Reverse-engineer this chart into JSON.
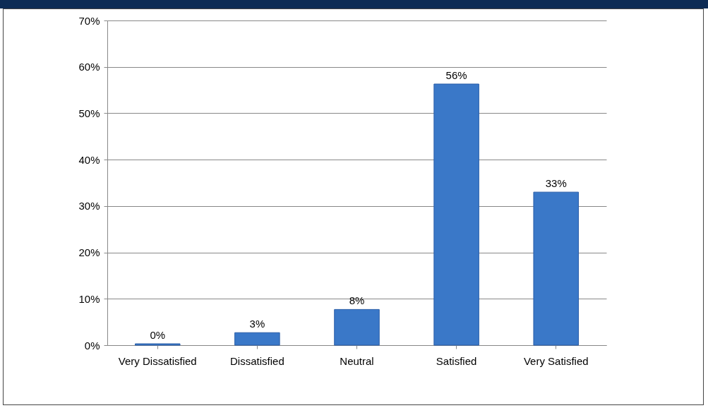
{
  "chart_data": {
    "type": "bar",
    "categories": [
      "Very Dissatisfied",
      "Dissatisfied",
      "Neutral",
      "Satisfied",
      "Very Satisfied"
    ],
    "values": [
      0.3,
      2.7,
      7.7,
      56.3,
      33.0
    ],
    "value_labels": [
      "0%",
      "3%",
      "8%",
      "56%",
      "33%"
    ],
    "color": "#3a78c8",
    "ylim": [
      0,
      70
    ],
    "yticks": [
      {
        "value": 0,
        "label": "0%"
      },
      {
        "value": 10,
        "label": "10%"
      },
      {
        "value": 20,
        "label": "20%"
      },
      {
        "value": 30,
        "label": "30%"
      },
      {
        "value": 40,
        "label": "40%"
      },
      {
        "value": 50,
        "label": "50%"
      },
      {
        "value": 60,
        "label": "60%"
      },
      {
        "value": 70,
        "label": "70%"
      }
    ],
    "grid": "y"
  }
}
